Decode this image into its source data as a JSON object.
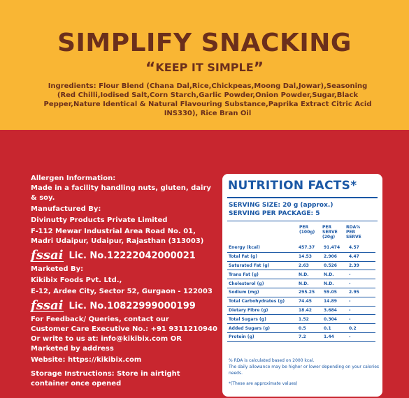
{
  "header": {
    "headline": "SIMPLIFY SNACKING",
    "tagline": "KEEP IT SIMPLE",
    "quote_open": "“",
    "quote_close": "”",
    "ingredients": "Ingredients: Flour Blend (Chana Dal,Rice,Chickpeas,Moong Dal,Jowar),Seasoning (Red Chilli,Iodised Salt,Corn Starch,Garlic Powder,Onion Powder,Sugar,Black Pepper,Nature Identical & Natural Flavouring Substance,Paprika Extract Citric Acid INS330), Rice Bran Oil"
  },
  "info": {
    "allergen_title": "Allergen Information:",
    "allergen_text": "Made in a facility handling nuts, gluten, dairy & soy.",
    "manufactured_title": "Manufactured By:",
    "manufacturer_name": "Divinutty Products Private Limited",
    "manufacturer_address": "F-112 Mewar Industrial Area Road No. 01, Madri Udaipur, Udaipur, Rajasthan (313003)",
    "fssai_logo": "fssai",
    "lic1": "Lic. No.12222042000021",
    "marketed_title": "Marketed By:",
    "marketer_name": "Kikibix Foods Pvt. Ltd.,",
    "marketer_address": "E-12, Ardee City, Sector 52, Gurgaon - 122003",
    "lic2": "Lic. No.10822999000199",
    "feedback_title": "For Feedback/ Queries, contact our",
    "feedback_text": "Customer Care Executive No.: +91 9311210940 Or write to us at: info@kikibix.com OR Marketed by address",
    "website": "Website: https://kikibix.com",
    "storage": "Storage Instructions: Store in airtight container once opened"
  },
  "nutrition": {
    "title": "NUTRITION FACTS*",
    "serving_size": "SERVING SIZE: 20 g (approx.)",
    "servings_per_package": "SERVING PER PACKAGE: 5",
    "col1": "PER (100g)",
    "col2": "PER SERVE (20g)",
    "col3": "RDA% PER SERVE",
    "rows": [
      {
        "name": "Energy (kcal)",
        "per100": "457.37",
        "perserve": "91.474",
        "rda": "4.57"
      },
      {
        "name": "Total Fat (g)",
        "per100": "14.53",
        "perserve": "2.906",
        "rda": "4.47"
      },
      {
        "name": "Saturated Fat (g)",
        "per100": "2.63",
        "perserve": "0.526",
        "rda": "2.39"
      },
      {
        "name": "Trans Fat (g)",
        "per100": "N.D.",
        "perserve": "N.D.",
        "rda": "-"
      },
      {
        "name": "Cholesterol (g)",
        "per100": "N.D.",
        "perserve": "N.D.",
        "rda": "-"
      },
      {
        "name": "Sodium (mg)",
        "per100": "295.25",
        "perserve": "59.05",
        "rda": "2.95"
      },
      {
        "name": "Total Carbohydrates (g)",
        "per100": "74.45",
        "perserve": "14.89",
        "rda": "-"
      },
      {
        "name": "Dietary Fibre (g)",
        "per100": "18.42",
        "perserve": "3.684",
        "rda": "-"
      },
      {
        "name": "Total Sugars (g)",
        "per100": "1.52",
        "perserve": "0.304",
        "rda": "-"
      },
      {
        "name": "Added Sugars (g)",
        "per100": "0.5",
        "perserve": "0.1",
        "rda": "0.2"
      },
      {
        "name": "Protein (g)",
        "per100": "7.2",
        "perserve": "1.44",
        "rda": "-"
      }
    ],
    "footnote1": "% RDA is calculated based on 2000 kcal.",
    "footnote2": "The daily allowance may be higher or lower depending on your calories needs.",
    "footnote3": "*(These are approximate values)"
  },
  "colors": {
    "top_bg": "#f9b634",
    "bottom_bg": "#c8262f",
    "brown_text": "#6b2f1c",
    "nutrition_blue": "#1b58a5"
  }
}
